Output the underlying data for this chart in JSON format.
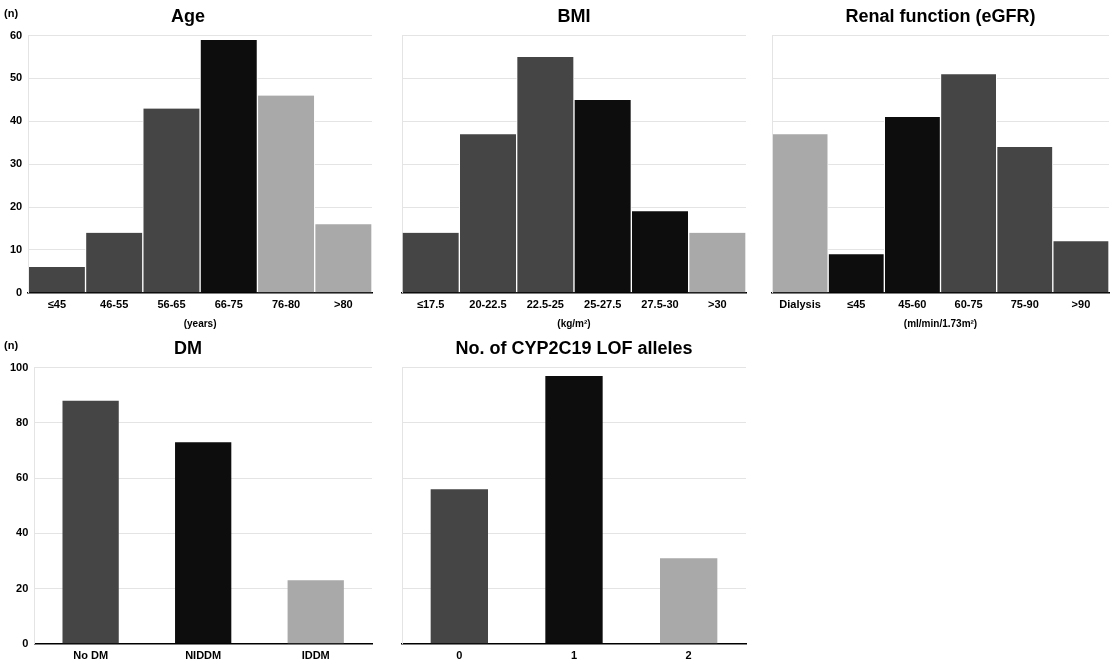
{
  "chart_data": [
    {
      "type": "bar",
      "title": "Age",
      "xlabel": "(years)",
      "ylabel": "(n)",
      "categories": [
        "≤45",
        "46-55",
        "56-65",
        "66-75",
        "76-80",
        ">80"
      ],
      "values": [
        6,
        14,
        43,
        59,
        46,
        16
      ],
      "colors": [
        "#454545",
        "#454545",
        "#454545",
        "#0d0d0d",
        "#a9a9a9",
        "#a9a9a9"
      ],
      "ylim": [
        0,
        60
      ],
      "yticks": [
        0,
        10,
        20,
        30,
        40,
        50,
        60
      ],
      "grid": "y",
      "legend": false
    },
    {
      "type": "bar",
      "title": "BMI",
      "xlabel": "(kg/m²)",
      "categories": [
        "≤17.5",
        "20-22.5",
        "22.5-25",
        "25-27.5",
        "27.5-30",
        ">30"
      ],
      "values": [
        14,
        37,
        55,
        45,
        19,
        14
      ],
      "colors": [
        "#454545",
        "#454545",
        "#454545",
        "#0d0d0d",
        "#0d0d0d",
        "#a9a9a9"
      ],
      "ylim": [
        0,
        60
      ],
      "yticks": [
        0,
        10,
        20,
        30,
        40,
        50,
        60
      ],
      "grid": "y",
      "legend": false,
      "tick_labels": "x"
    },
    {
      "type": "bar",
      "title": "Renal function (eGFR)",
      "xlabel": "(ml/min/1.73m²)",
      "categories": [
        "Dialysis",
        "≤45",
        "45-60",
        "60-75",
        "75-90",
        ">90"
      ],
      "values": [
        37,
        9,
        41,
        51,
        34,
        12
      ],
      "colors": [
        "#a9a9a9",
        "#0d0d0d",
        "#0d0d0d",
        "#454545",
        "#454545",
        "#454545"
      ],
      "ylim": [
        0,
        60
      ],
      "yticks": [
        0,
        10,
        20,
        30,
        40,
        50,
        60
      ],
      "grid": "y",
      "legend": false,
      "tick_labels": "x"
    },
    {
      "type": "bar",
      "title": "DM",
      "ylabel": "(n)",
      "categories": [
        "No DM",
        "NIDDM",
        "IDDM"
      ],
      "values": [
        88,
        73,
        23
      ],
      "colors": [
        "#454545",
        "#0d0d0d",
        "#a9a9a9"
      ],
      "ylim": [
        0,
        100
      ],
      "yticks": [
        0,
        20,
        40,
        60,
        80,
        100
      ],
      "grid": "y",
      "legend": false
    },
    {
      "type": "bar",
      "title": "No. of CYP2C19 LOF alleles",
      "categories": [
        "0",
        "1",
        "2"
      ],
      "values": [
        56,
        97,
        31
      ],
      "colors": [
        "#454545",
        "#0d0d0d",
        "#a9a9a9"
      ],
      "ylim": [
        0,
        100
      ],
      "yticks": [
        0,
        20,
        40,
        60,
        80,
        100
      ],
      "grid": "y",
      "legend": false,
      "tick_labels": "x"
    }
  ]
}
